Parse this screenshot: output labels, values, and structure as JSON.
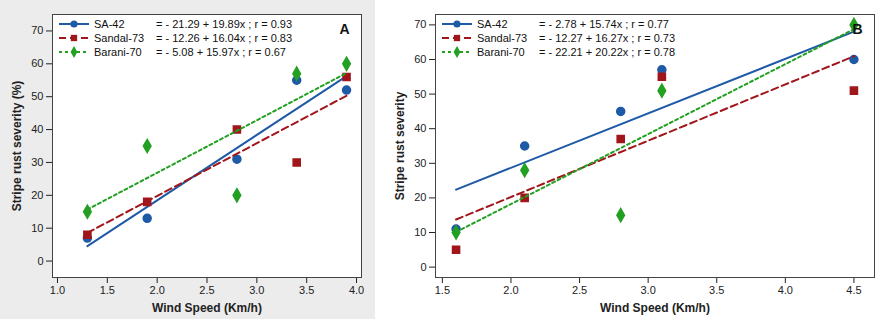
{
  "chart_data": [
    {
      "type": "scatter",
      "title": "A",
      "x_label": "Wind Speed (Km/h)",
      "y_label": "Stripe rust severity (%)",
      "x": [
        1.3,
        1.9,
        2.8,
        3.4,
        3.9
      ],
      "series": [
        {
          "name": "SA-42",
          "equation": "= - 21.29 + 19.89x ; r = 0.93",
          "color": "#1f5aa6",
          "marker": "circle",
          "line_style": "solid",
          "values": [
            7,
            13,
            31,
            55,
            52
          ]
        },
        {
          "name": "Sandal-73",
          "equation": "= - 12.26 + 16.04x ; r = 0.83",
          "color": "#a0161a",
          "marker": "square",
          "line_style": "dashed",
          "values": [
            8,
            18,
            40,
            30,
            56
          ]
        },
        {
          "name": "Barani-70",
          "equation": "= - 5.08 + 15.97x ; r = 0.67",
          "color": "#22a022",
          "marker": "diamond",
          "line_style": "dotted",
          "values": [
            15,
            35,
            20,
            57,
            60
          ]
        }
      ],
      "xlim": [
        0.95,
        4.05
      ],
      "ylim": [
        -5,
        75
      ],
      "xticks": [
        {
          "value": 1,
          "label": "1.0"
        },
        1.5,
        {
          "value": 2,
          "label": "2.0"
        },
        2.5,
        {
          "value": 3,
          "label": "3.0"
        },
        3.5,
        {
          "value": 4,
          "label": "4.0"
        }
      ],
      "yticks": [
        0,
        10,
        20,
        30,
        40,
        50,
        60,
        70
      ],
      "legend": "top-left",
      "grid": false
    },
    {
      "type": "scatter",
      "title": "B",
      "x_label": "Wind Speed (Km/h)",
      "y_label": "Stripe rust severity",
      "x": [
        1.6,
        2.1,
        2.8,
        3.1,
        4.5
      ],
      "series": [
        {
          "name": "SA-42",
          "equation": "= - 2.78 + 15.74x ; r = 0.77",
          "color": "#1f5aa6",
          "marker": "circle",
          "line_style": "solid",
          "values": [
            11,
            35,
            45,
            57,
            60
          ]
        },
        {
          "name": "Sandal-73",
          "equation": "= - 12.27 + 16.27x ; r = 0.73",
          "color": "#a0161a",
          "marker": "square",
          "line_style": "dashed",
          "values": [
            5,
            20,
            37,
            55,
            51
          ]
        },
        {
          "name": "Barani-70",
          "equation": "= - 22.21 + 20.22x ; r = 0.78",
          "color": "#22a022",
          "marker": "diamond",
          "line_style": "dotted",
          "values": [
            10,
            28,
            15,
            51,
            70
          ]
        }
      ],
      "xlim": [
        1.45,
        4.65
      ],
      "ylim": [
        -3,
        73
      ],
      "xticks": [
        1.5,
        {
          "value": 2,
          "label": "2.0"
        },
        2.5,
        {
          "value": 3,
          "label": "3.0"
        },
        3.5,
        {
          "value": 4,
          "label": "4.0"
        },
        4.5
      ],
      "yticks": [
        0,
        10,
        20,
        30,
        40,
        50,
        60,
        70
      ],
      "legend": "top-left",
      "grid": false
    }
  ]
}
